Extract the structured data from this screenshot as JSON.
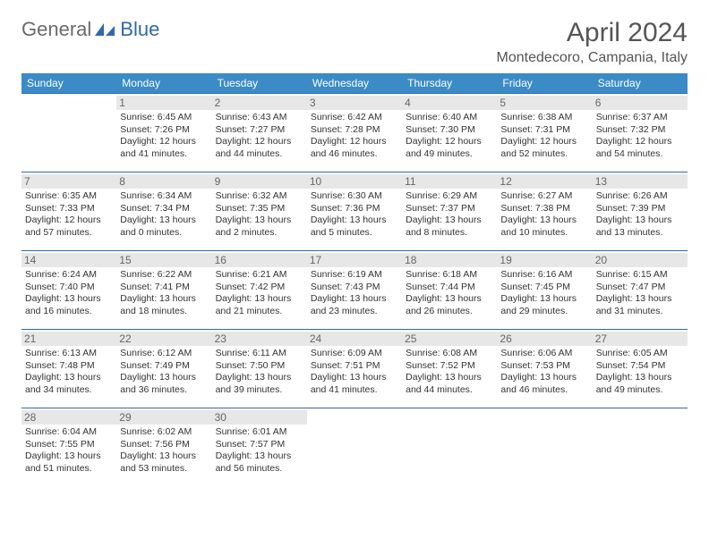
{
  "logo": {
    "general": "General",
    "blue": "Blue"
  },
  "title": "April 2024",
  "location": "Montedecoro, Campania, Italy",
  "colors": {
    "header_bg": "#3b8bc7",
    "header_text": "#ffffff",
    "border": "#2f6aa8",
    "daynum_bg": "#e7e7e7",
    "daynum_text": "#666666",
    "body_text": "#333333",
    "title_text": "#555555",
    "logo_gray": "#6a6a6a",
    "logo_blue": "#2f6aa8"
  },
  "weekdays": [
    "Sunday",
    "Monday",
    "Tuesday",
    "Wednesday",
    "Thursday",
    "Friday",
    "Saturday"
  ],
  "weeks": [
    [
      null,
      {
        "n": "1",
        "sr": "Sunrise: 6:45 AM",
        "ss": "Sunset: 7:26 PM",
        "d1": "Daylight: 12 hours",
        "d2": "and 41 minutes."
      },
      {
        "n": "2",
        "sr": "Sunrise: 6:43 AM",
        "ss": "Sunset: 7:27 PM",
        "d1": "Daylight: 12 hours",
        "d2": "and 44 minutes."
      },
      {
        "n": "3",
        "sr": "Sunrise: 6:42 AM",
        "ss": "Sunset: 7:28 PM",
        "d1": "Daylight: 12 hours",
        "d2": "and 46 minutes."
      },
      {
        "n": "4",
        "sr": "Sunrise: 6:40 AM",
        "ss": "Sunset: 7:30 PM",
        "d1": "Daylight: 12 hours",
        "d2": "and 49 minutes."
      },
      {
        "n": "5",
        "sr": "Sunrise: 6:38 AM",
        "ss": "Sunset: 7:31 PM",
        "d1": "Daylight: 12 hours",
        "d2": "and 52 minutes."
      },
      {
        "n": "6",
        "sr": "Sunrise: 6:37 AM",
        "ss": "Sunset: 7:32 PM",
        "d1": "Daylight: 12 hours",
        "d2": "and 54 minutes."
      }
    ],
    [
      {
        "n": "7",
        "sr": "Sunrise: 6:35 AM",
        "ss": "Sunset: 7:33 PM",
        "d1": "Daylight: 12 hours",
        "d2": "and 57 minutes."
      },
      {
        "n": "8",
        "sr": "Sunrise: 6:34 AM",
        "ss": "Sunset: 7:34 PM",
        "d1": "Daylight: 13 hours",
        "d2": "and 0 minutes."
      },
      {
        "n": "9",
        "sr": "Sunrise: 6:32 AM",
        "ss": "Sunset: 7:35 PM",
        "d1": "Daylight: 13 hours",
        "d2": "and 2 minutes."
      },
      {
        "n": "10",
        "sr": "Sunrise: 6:30 AM",
        "ss": "Sunset: 7:36 PM",
        "d1": "Daylight: 13 hours",
        "d2": "and 5 minutes."
      },
      {
        "n": "11",
        "sr": "Sunrise: 6:29 AM",
        "ss": "Sunset: 7:37 PM",
        "d1": "Daylight: 13 hours",
        "d2": "and 8 minutes."
      },
      {
        "n": "12",
        "sr": "Sunrise: 6:27 AM",
        "ss": "Sunset: 7:38 PM",
        "d1": "Daylight: 13 hours",
        "d2": "and 10 minutes."
      },
      {
        "n": "13",
        "sr": "Sunrise: 6:26 AM",
        "ss": "Sunset: 7:39 PM",
        "d1": "Daylight: 13 hours",
        "d2": "and 13 minutes."
      }
    ],
    [
      {
        "n": "14",
        "sr": "Sunrise: 6:24 AM",
        "ss": "Sunset: 7:40 PM",
        "d1": "Daylight: 13 hours",
        "d2": "and 16 minutes."
      },
      {
        "n": "15",
        "sr": "Sunrise: 6:22 AM",
        "ss": "Sunset: 7:41 PM",
        "d1": "Daylight: 13 hours",
        "d2": "and 18 minutes."
      },
      {
        "n": "16",
        "sr": "Sunrise: 6:21 AM",
        "ss": "Sunset: 7:42 PM",
        "d1": "Daylight: 13 hours",
        "d2": "and 21 minutes."
      },
      {
        "n": "17",
        "sr": "Sunrise: 6:19 AM",
        "ss": "Sunset: 7:43 PM",
        "d1": "Daylight: 13 hours",
        "d2": "and 23 minutes."
      },
      {
        "n": "18",
        "sr": "Sunrise: 6:18 AM",
        "ss": "Sunset: 7:44 PM",
        "d1": "Daylight: 13 hours",
        "d2": "and 26 minutes."
      },
      {
        "n": "19",
        "sr": "Sunrise: 6:16 AM",
        "ss": "Sunset: 7:45 PM",
        "d1": "Daylight: 13 hours",
        "d2": "and 29 minutes."
      },
      {
        "n": "20",
        "sr": "Sunrise: 6:15 AM",
        "ss": "Sunset: 7:47 PM",
        "d1": "Daylight: 13 hours",
        "d2": "and 31 minutes."
      }
    ],
    [
      {
        "n": "21",
        "sr": "Sunrise: 6:13 AM",
        "ss": "Sunset: 7:48 PM",
        "d1": "Daylight: 13 hours",
        "d2": "and 34 minutes."
      },
      {
        "n": "22",
        "sr": "Sunrise: 6:12 AM",
        "ss": "Sunset: 7:49 PM",
        "d1": "Daylight: 13 hours",
        "d2": "and 36 minutes."
      },
      {
        "n": "23",
        "sr": "Sunrise: 6:11 AM",
        "ss": "Sunset: 7:50 PM",
        "d1": "Daylight: 13 hours",
        "d2": "and 39 minutes."
      },
      {
        "n": "24",
        "sr": "Sunrise: 6:09 AM",
        "ss": "Sunset: 7:51 PM",
        "d1": "Daylight: 13 hours",
        "d2": "and 41 minutes."
      },
      {
        "n": "25",
        "sr": "Sunrise: 6:08 AM",
        "ss": "Sunset: 7:52 PM",
        "d1": "Daylight: 13 hours",
        "d2": "and 44 minutes."
      },
      {
        "n": "26",
        "sr": "Sunrise: 6:06 AM",
        "ss": "Sunset: 7:53 PM",
        "d1": "Daylight: 13 hours",
        "d2": "and 46 minutes."
      },
      {
        "n": "27",
        "sr": "Sunrise: 6:05 AM",
        "ss": "Sunset: 7:54 PM",
        "d1": "Daylight: 13 hours",
        "d2": "and 49 minutes."
      }
    ],
    [
      {
        "n": "28",
        "sr": "Sunrise: 6:04 AM",
        "ss": "Sunset: 7:55 PM",
        "d1": "Daylight: 13 hours",
        "d2": "and 51 minutes."
      },
      {
        "n": "29",
        "sr": "Sunrise: 6:02 AM",
        "ss": "Sunset: 7:56 PM",
        "d1": "Daylight: 13 hours",
        "d2": "and 53 minutes."
      },
      {
        "n": "30",
        "sr": "Sunrise: 6:01 AM",
        "ss": "Sunset: 7:57 PM",
        "d1": "Daylight: 13 hours",
        "d2": "and 56 minutes."
      },
      null,
      null,
      null,
      null
    ]
  ]
}
